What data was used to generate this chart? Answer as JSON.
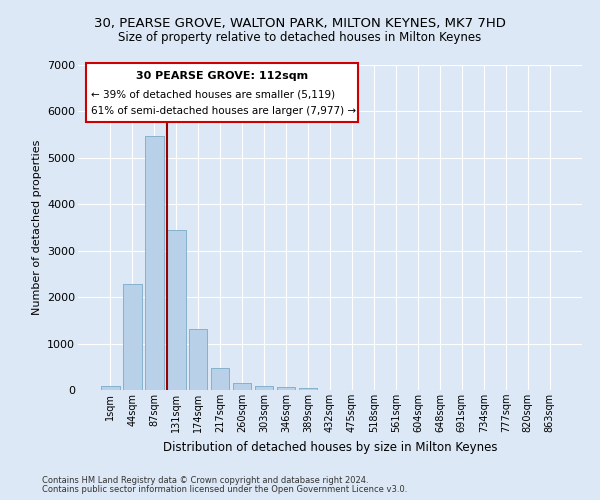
{
  "title_line1": "30, PEARSE GROVE, WALTON PARK, MILTON KEYNES, MK7 7HD",
  "title_line2": "Size of property relative to detached houses in Milton Keynes",
  "xlabel": "Distribution of detached houses by size in Milton Keynes",
  "ylabel": "Number of detached properties",
  "bar_color": "#b8d0e8",
  "bar_edge_color": "#7aaac8",
  "bg_color": "#dce8f5",
  "fig_bg_color": "#dce8f5",
  "grid_color": "#ffffff",
  "categories": [
    "1sqm",
    "44sqm",
    "87sqm",
    "131sqm",
    "174sqm",
    "217sqm",
    "260sqm",
    "303sqm",
    "346sqm",
    "389sqm",
    "432sqm",
    "475sqm",
    "518sqm",
    "561sqm",
    "604sqm",
    "648sqm",
    "691sqm",
    "734sqm",
    "777sqm",
    "820sqm",
    "863sqm"
  ],
  "values": [
    90,
    2280,
    5480,
    3450,
    1310,
    470,
    160,
    95,
    70,
    40,
    0,
    0,
    0,
    0,
    0,
    0,
    0,
    0,
    0,
    0,
    0
  ],
  "ylim": [
    0,
    7000
  ],
  "yticks": [
    0,
    1000,
    2000,
    3000,
    4000,
    5000,
    6000,
    7000
  ],
  "property_line_x": 2.57,
  "annotation_text_line1": "30 PEARSE GROVE: 112sqm",
  "annotation_text_line2": "← 39% of detached houses are smaller (5,119)",
  "annotation_text_line3": "61% of semi-detached houses are larger (7,977) →",
  "red_line_color": "#990000",
  "footer_line1": "Contains HM Land Registry data © Crown copyright and database right 2024.",
  "footer_line2": "Contains public sector information licensed under the Open Government Licence v3.0."
}
